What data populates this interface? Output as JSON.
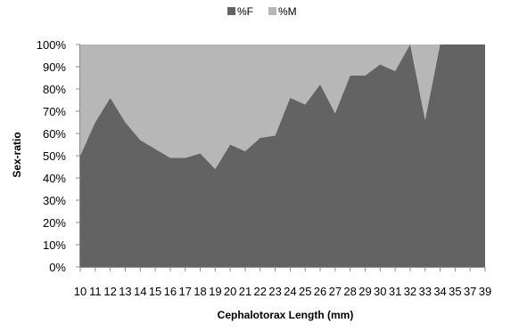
{
  "chart_data": {
    "type": "area",
    "stacked": "percent",
    "xlabel": "Cephalotorax Length (mm)",
    "ylabel": "Sex-ratio",
    "y_ticks": [
      "0%",
      "10%",
      "20%",
      "30%",
      "40%",
      "50%",
      "60%",
      "70%",
      "80%",
      "90%",
      "100%"
    ],
    "ylim": [
      0,
      100
    ],
    "categories": [
      "10",
      "11",
      "12",
      "13",
      "14",
      "15",
      "16",
      "17",
      "18",
      "19",
      "20",
      "21",
      "22",
      "23",
      "24",
      "25",
      "26",
      "27",
      "28",
      "29",
      "30",
      "31",
      "32",
      "33",
      "34",
      "35",
      "37",
      "39"
    ],
    "series": [
      {
        "name": "%F",
        "color": "#636363",
        "values": [
          50,
          65,
          76,
          65,
          57,
          53,
          49,
          49,
          51,
          44,
          55,
          52,
          58,
          59,
          76,
          73,
          82,
          69,
          86,
          86,
          91,
          88,
          100,
          66,
          100,
          100,
          100,
          100
        ]
      },
      {
        "name": "%M",
        "color": "#b7b7b7",
        "values": [
          50,
          35,
          24,
          35,
          43,
          47,
          51,
          51,
          49,
          56,
          45,
          48,
          42,
          41,
          24,
          27,
          18,
          31,
          14,
          14,
          9,
          12,
          0,
          34,
          0,
          0,
          0,
          0
        ]
      }
    ],
    "legend_position": "top",
    "grid": false
  }
}
